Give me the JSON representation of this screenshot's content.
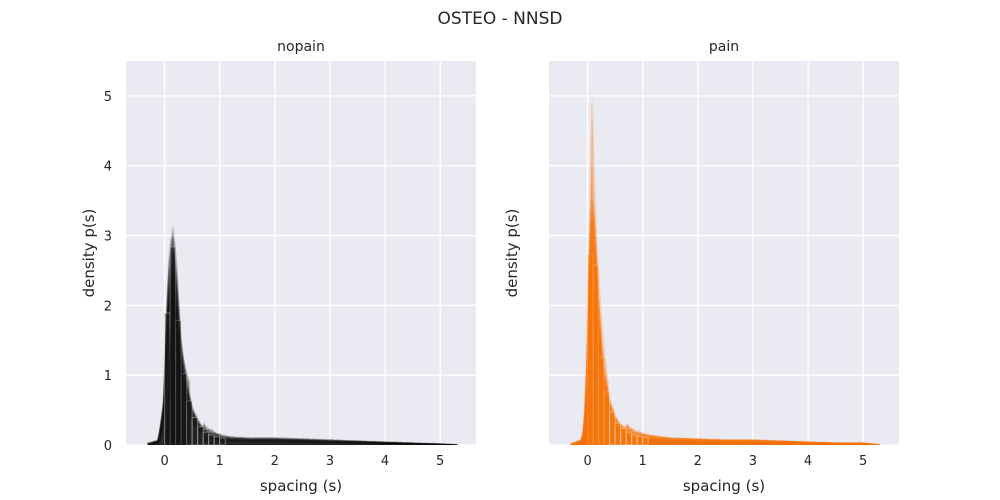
{
  "figure": {
    "title": "OSTEO - NNSD"
  },
  "chart_data": [
    {
      "type": "area",
      "title": "nopain",
      "xlabel": "spacing (s)",
      "ylabel": "density p(s)",
      "xlim": [
        -0.7,
        5.65
      ],
      "ylim": [
        0,
        5.5
      ],
      "xticks": [
        0,
        1,
        2,
        3,
        4,
        5
      ],
      "yticks": [
        0,
        1,
        2,
        3,
        4,
        5
      ],
      "grid": true,
      "color": "#1a1a1a",
      "peak_range": [
        2.05,
        3.15
      ],
      "x": [
        -0.3,
        -0.1,
        0.0,
        0.05,
        0.1,
        0.15,
        0.2,
        0.25,
        0.3,
        0.4,
        0.5,
        0.6,
        0.7,
        0.8,
        1.0,
        1.2,
        1.5,
        2.0,
        2.5,
        3.0,
        3.5,
        4.0,
        4.5,
        5.0,
        5.3
      ],
      "y": [
        0,
        0.05,
        0.6,
        1.8,
        2.5,
        2.7,
        2.3,
        1.7,
        1.2,
        0.75,
        0.45,
        0.3,
        0.2,
        0.15,
        0.1,
        0.08,
        0.07,
        0.07,
        0.06,
        0.05,
        0.04,
        0.03,
        0.02,
        0.01,
        0
      ]
    },
    {
      "type": "area",
      "title": "pain",
      "xlabel": "spacing (s)",
      "ylabel": "density p(s)",
      "xlim": [
        -0.7,
        5.65
      ],
      "ylim": [
        0,
        5.5
      ],
      "xticks": [
        0,
        1,
        2,
        3,
        4,
        5
      ],
      "yticks": [],
      "grid": true,
      "color": "#ff7f0e",
      "peak_range": [
        2.2,
        5.25
      ],
      "x": [
        -0.3,
        -0.1,
        -0.05,
        0.0,
        0.05,
        0.08,
        0.12,
        0.18,
        0.25,
        0.3,
        0.4,
        0.5,
        0.6,
        0.8,
        1.0,
        1.2,
        1.5,
        2.0,
        2.5,
        3.0,
        3.5,
        4.0,
        4.5,
        5.0,
        5.3
      ],
      "y": [
        0,
        0.05,
        0.2,
        1.0,
        2.6,
        3.2,
        2.9,
        2.0,
        1.2,
        0.9,
        0.55,
        0.35,
        0.25,
        0.15,
        0.11,
        0.09,
        0.07,
        0.06,
        0.05,
        0.05,
        0.04,
        0.03,
        0.02,
        0.02,
        0
      ]
    }
  ]
}
